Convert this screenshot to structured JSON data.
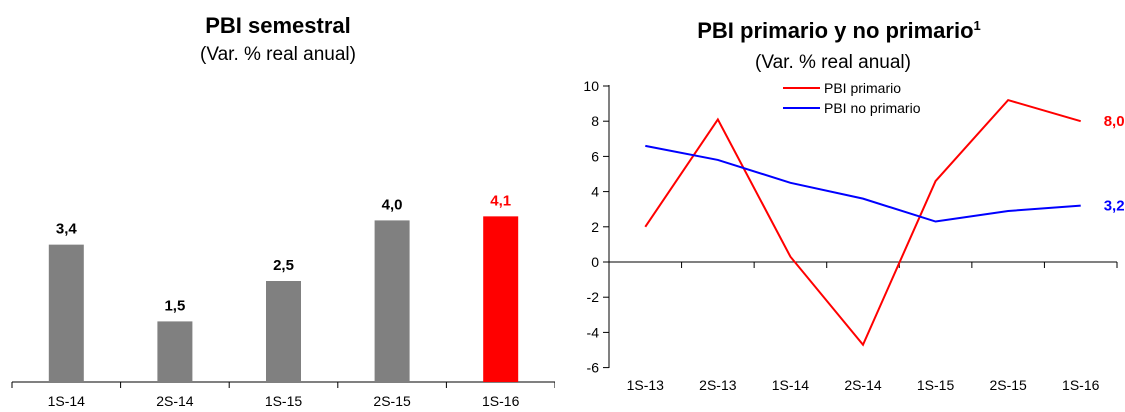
{
  "chart_data": [
    {
      "type": "bar",
      "title": "PBI semestral",
      "subtitle": "(Var. % real anual)",
      "categories": [
        "1S-14",
        "2S-14",
        "1S-15",
        "2S-15",
        "1S-16"
      ],
      "values": [
        3.4,
        1.5,
        2.5,
        4.0,
        4.1
      ],
      "value_labels": [
        "3,4",
        "1,5",
        "2,5",
        "4,0",
        "4,1"
      ],
      "colors": [
        "#808080",
        "#808080",
        "#808080",
        "#808080",
        "#ff0000"
      ],
      "label_colors": [
        "#000000",
        "#000000",
        "#000000",
        "#000000",
        "#ff0000"
      ],
      "ylim": [
        -1.3,
        5.9
      ],
      "grid": false
    },
    {
      "type": "line",
      "title": "PBI primario y no primario",
      "title_sup": "1",
      "subtitle": "(Var. % real anual)",
      "categories": [
        "1S-13",
        "2S-13",
        "1S-14",
        "2S-14",
        "1S-15",
        "2S-15",
        "1S-16"
      ],
      "yticks": [
        "10",
        "8",
        "6",
        "4",
        "2",
        "0",
        "-2",
        "-4",
        "-6"
      ],
      "ylim": [
        -6,
        10
      ],
      "grid": false,
      "legend_position": "top-center",
      "series": [
        {
          "name": "PBI primario",
          "color": "#ff0000",
          "values": [
            2.0,
            8.1,
            0.3,
            -4.7,
            4.6,
            9.2,
            8.0
          ],
          "end_label": "8,0"
        },
        {
          "name": "PBI no primario",
          "color": "#0000ff",
          "values": [
            6.6,
            5.8,
            4.5,
            3.6,
            2.3,
            2.9,
            3.2
          ],
          "end_label": "3,2"
        }
      ]
    }
  ]
}
